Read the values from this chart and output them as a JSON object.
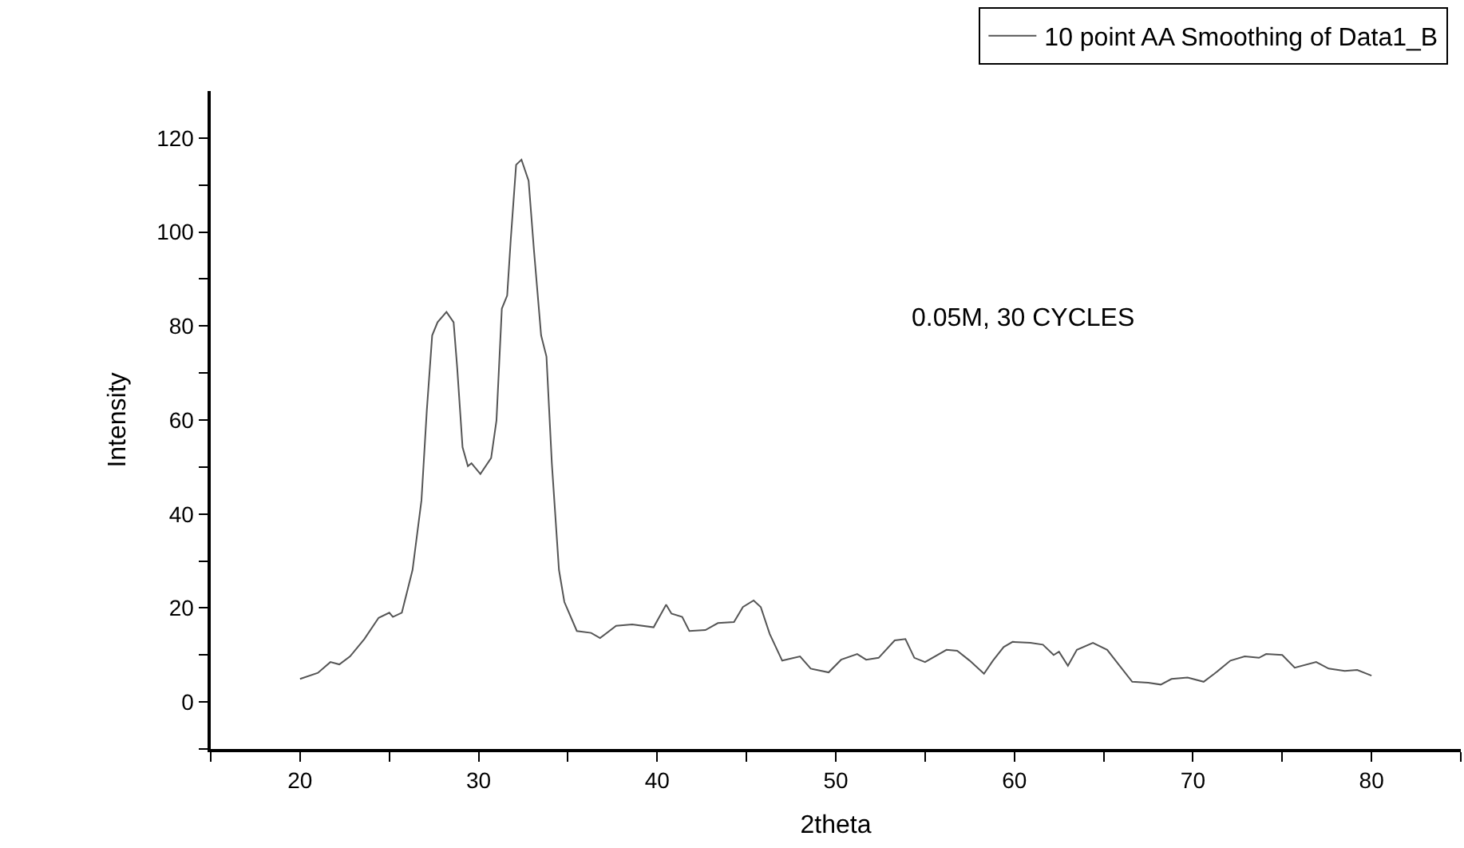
{
  "chart_data": {
    "type": "line",
    "xlabel": "2theta",
    "ylabel": "Intensity",
    "annotations": [
      "0.05M, 30 CYCLES"
    ],
    "legend": "top right",
    "marker": "none",
    "line_style": "solid",
    "xlim": [
      15,
      85
    ],
    "ylim": [
      -10,
      130
    ],
    "xticks": [
      {
        "value": 15,
        "label": null
      },
      20,
      {
        "value": 25,
        "label": null
      },
      30,
      {
        "value": 35,
        "label": null
      },
      40,
      {
        "value": 45,
        "label": null
      },
      50,
      {
        "value": 55,
        "label": null
      },
      60,
      {
        "value": 65,
        "label": null
      },
      70,
      {
        "value": 75,
        "label": null
      },
      80,
      {
        "value": 85,
        "label": null
      }
    ],
    "yticks": [
      {
        "value": -10,
        "label": null
      },
      0,
      {
        "value": 10,
        "label": null
      },
      20,
      {
        "value": 30,
        "label": null
      },
      40,
      {
        "value": 50,
        "label": null
      },
      60,
      {
        "value": 70,
        "label": null
      },
      80,
      {
        "value": 90,
        "label": null
      },
      100,
      {
        "value": 110,
        "label": null
      },
      120
    ],
    "series": [
      {
        "name": "10 point AA Smoothing of Data1_B",
        "color": "#555555",
        "x": [
          20.0,
          21.0,
          21.7,
          22.2,
          22.8,
          23.6,
          24.4,
          25.0,
          25.2,
          25.7,
          26.3,
          26.8,
          27.1,
          27.4,
          27.7,
          28.2,
          28.6,
          28.8,
          29.1,
          29.4,
          29.6,
          30.1,
          30.7,
          31.0,
          31.3,
          31.6,
          31.8,
          32.1,
          32.4,
          32.8,
          33.1,
          33.5,
          33.8,
          34.1,
          34.5,
          34.8,
          35.5,
          36.3,
          36.8,
          37.7,
          38.6,
          39.8,
          40.5,
          40.8,
          41.4,
          41.8,
          42.7,
          43.4,
          44.3,
          44.8,
          45.4,
          45.8,
          46.3,
          47.0,
          48.0,
          48.6,
          49.6,
          50.3,
          51.2,
          51.7,
          52.4,
          53.3,
          53.9,
          54.4,
          55.0,
          56.2,
          56.8,
          57.5,
          58.3,
          58.8,
          59.4,
          59.9,
          60.9,
          61.6,
          62.2,
          62.5,
          63.0,
          63.5,
          64.4,
          65.2,
          65.9,
          66.6,
          67.5,
          68.2,
          68.8,
          69.7,
          70.6,
          71.2,
          72.1,
          72.9,
          73.7,
          74.1,
          75.0,
          75.7,
          76.9,
          77.6,
          78.5,
          79.2,
          80.0
        ],
        "values": [
          4.9,
          6.2,
          8.5,
          8.0,
          9.7,
          13.4,
          17.9,
          19.0,
          18.1,
          19.0,
          28.1,
          42.9,
          62.1,
          78.0,
          80.8,
          83.0,
          80.8,
          71.2,
          54.2,
          50.2,
          50.8,
          48.5,
          51.9,
          59.9,
          83.7,
          86.5,
          98.4,
          114.3,
          115.4,
          110.9,
          96.1,
          78.0,
          73.5,
          50.8,
          28.1,
          21.3,
          15.1,
          14.7,
          13.6,
          16.2,
          16.5,
          15.9,
          20.7,
          18.8,
          18.1,
          15.1,
          15.3,
          16.8,
          17.0,
          20.2,
          21.6,
          20.2,
          14.5,
          8.8,
          9.7,
          7.1,
          6.3,
          9.0,
          10.2,
          9.0,
          9.4,
          13.1,
          13.4,
          9.4,
          8.5,
          11.1,
          10.9,
          8.8,
          6.0,
          8.8,
          11.7,
          12.8,
          12.6,
          12.2,
          10.0,
          10.7,
          7.7,
          11.1,
          12.6,
          11.1,
          7.7,
          4.3,
          4.1,
          3.7,
          4.9,
          5.2,
          4.3,
          6.0,
          8.8,
          9.7,
          9.4,
          10.2,
          10.0,
          7.3,
          8.5,
          7.1,
          6.6,
          6.8,
          5.6
        ]
      }
    ]
  }
}
